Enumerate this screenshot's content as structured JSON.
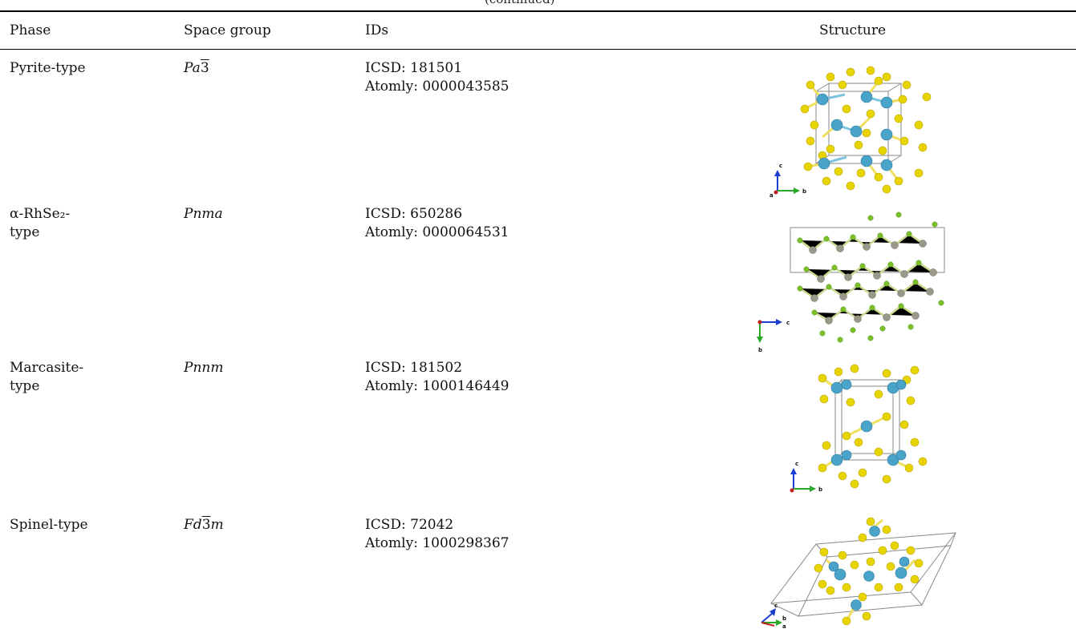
{
  "caption_fragment": "(continued)",
  "headers": {
    "phase": "Phase",
    "space_group": "Space group",
    "ids": "IDs",
    "structure": "Structure"
  },
  "rows": [
    {
      "phase_lines": [
        "Pyrite-type"
      ],
      "space_group": {
        "prefix": "Pa",
        "bar": "3",
        "suffix": ""
      },
      "icsd": "ICSD: 181501",
      "atomly": "Atomly: 0000043585",
      "axes": [
        "c",
        "b",
        "a"
      ]
    },
    {
      "phase_lines": [
        "α-RhSe₂-",
        "type"
      ],
      "space_group": {
        "prefix": "Pnma",
        "bar": "",
        "suffix": ""
      },
      "icsd": "ICSD: 650286",
      "atomly": "Atomly: 0000064531",
      "axes": [
        "c",
        "b"
      ]
    },
    {
      "phase_lines": [
        "Marcasite-",
        "type"
      ],
      "space_group": {
        "prefix": "Pnnm",
        "bar": "",
        "suffix": ""
      },
      "icsd": "ICSD: 181502",
      "atomly": "Atomly: 1000146449",
      "axes": [
        "c",
        "b"
      ]
    },
    {
      "phase_lines": [
        "Spinel-type"
      ],
      "space_group": {
        "prefix": "Fd",
        "bar": "3",
        "suffix": "m"
      },
      "icsd": "ICSD: 72042",
      "atomly": "Atomly: 1000298367",
      "axes": [
        "c",
        "b",
        "a"
      ]
    }
  ],
  "colors": {
    "metal_atom": "#4aa3c8",
    "chalcogen_atom": "#e8d400",
    "rh_atom": "#9a9888",
    "se_atom": "#7cc02a",
    "cell_edge": "#8a8a8a",
    "axis_c": "#1a3fd0",
    "axis_b": "#2aa82a",
    "axis_a": "#c02020"
  }
}
